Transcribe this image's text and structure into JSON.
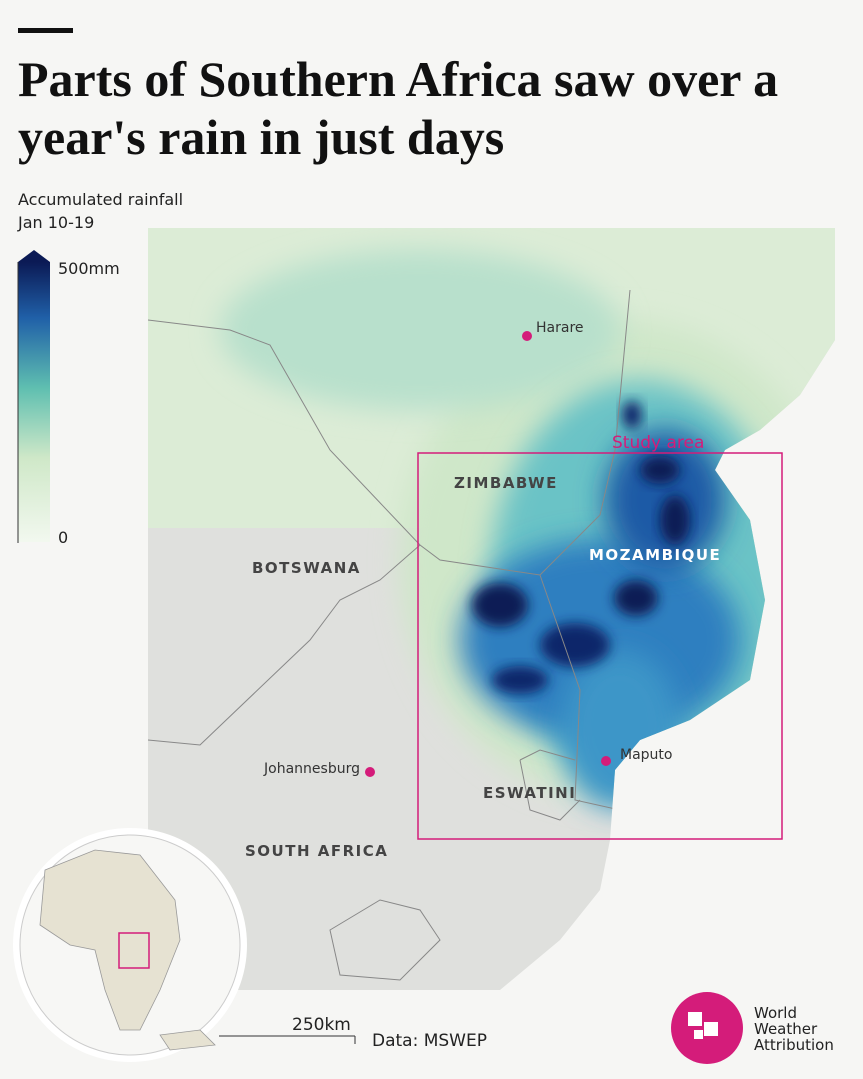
{
  "header": {
    "title": "Parts of Southern Africa saw over a year's rain in just days"
  },
  "legend": {
    "title": "Accumulated rainfall",
    "subtitle": "Jan 10-19",
    "max_label": "500mm",
    "min_label": "0"
  },
  "map": {
    "cities": [
      {
        "label": "Harare"
      },
      {
        "label": "Johannesburg"
      },
      {
        "label": "Maputo"
      }
    ],
    "countries": [
      "ZIMBABWE",
      "MOZAMBIQUE",
      "BOTSWANA",
      "ESWATINI",
      "SOUTH AFRICA"
    ],
    "study_area": "Study area"
  },
  "footer": {
    "scale": "250km",
    "source": "Data: MSWEP",
    "logo": [
      "World",
      "Weather",
      "Attribution"
    ]
  }
}
